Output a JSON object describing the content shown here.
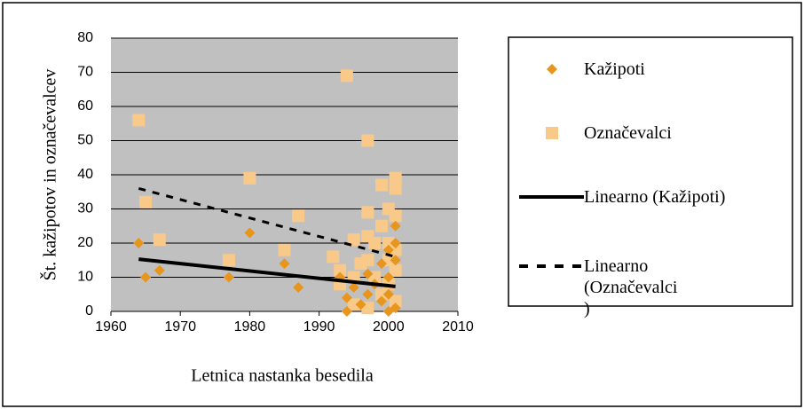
{
  "chart_data": {
    "type": "scatter",
    "xlabel": "Letnica nastanka besedila",
    "ylabel": "Št. kažipotov in označevalcev",
    "xlim": [
      1960,
      2010
    ],
    "xticks": [
      1960,
      1970,
      1980,
      1990,
      2000,
      2010
    ],
    "ylim": [
      0,
      80
    ],
    "yticks": [
      0,
      10,
      20,
      30,
      40,
      50,
      60,
      70,
      80
    ],
    "grid": true,
    "legend": "right",
    "series": [
      {
        "name": "Kažipoti",
        "kind": "scatter",
        "marker": "diamond",
        "color": "#e8951e",
        "x": [
          1964,
          1965,
          1967,
          1977,
          1980,
          1985,
          1987,
          1993,
          1994,
          1994,
          1995,
          1997,
          1997,
          1998,
          1999,
          2000,
          2000,
          2000,
          2001,
          2001,
          2001,
          2001,
          1996,
          1999,
          2000
        ],
        "values": [
          20,
          10,
          12,
          10,
          23,
          14,
          7,
          10,
          0,
          4,
          7,
          11,
          5,
          8,
          3,
          0,
          5,
          10,
          15,
          20,
          25,
          1,
          2,
          14,
          18
        ]
      },
      {
        "name": "Označevalci",
        "kind": "scatter",
        "marker": "square",
        "color": "#f9c98a",
        "x": [
          1964,
          1965,
          1967,
          1977,
          1980,
          1985,
          1987,
          1992,
          1993,
          1993,
          1994,
          1995,
          1995,
          1995,
          1996,
          1997,
          1997,
          1997,
          1997,
          1997,
          1998,
          1998,
          1999,
          1999,
          1999,
          2000,
          2000,
          2000,
          2000,
          2001,
          2001,
          2001,
          2001,
          2001,
          2001
        ],
        "values": [
          56,
          32,
          21,
          15,
          39,
          18,
          28,
          16,
          8,
          12,
          69,
          21,
          2,
          10,
          14,
          50,
          29,
          22,
          15,
          1,
          20,
          10,
          37,
          25,
          5,
          30,
          20,
          15,
          8,
          39,
          36,
          28,
          18,
          12,
          3
        ]
      },
      {
        "name": "Linearno (Kažipoti)",
        "kind": "line",
        "dash": "solid",
        "color": "#000000",
        "x": [
          1964,
          2001
        ],
        "values": [
          15.3,
          7.3
        ]
      },
      {
        "name": "Linearno (Označevalci )",
        "kind": "line",
        "dash": "dashed",
        "color": "#000000",
        "x": [
          1964,
          2001
        ],
        "values": [
          36,
          16
        ]
      }
    ]
  }
}
